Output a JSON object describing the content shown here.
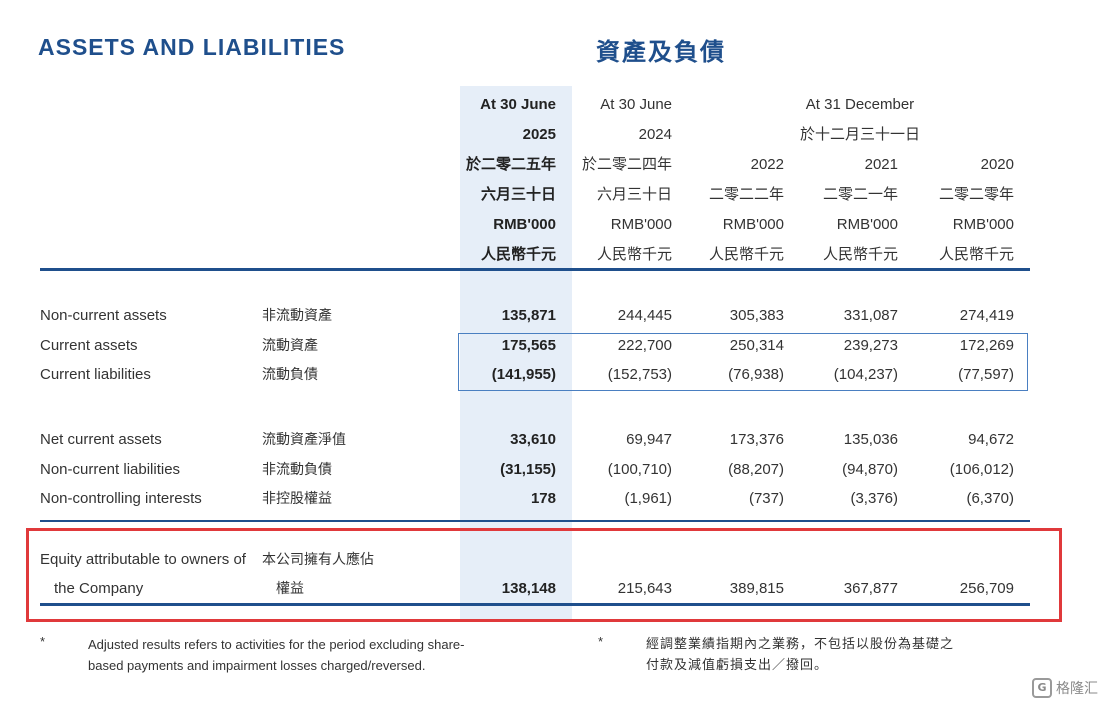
{
  "title": {
    "en": "ASSETS AND LIABILITIES",
    "zh": "資產及負債"
  },
  "header": {
    "col2025": [
      "At 30 June",
      "2025",
      "於二零二五年",
      "六月三十日",
      "RMB'000",
      "人民幣千元"
    ],
    "col2024": [
      "At 30 June",
      "2024",
      "於二零二四年",
      "六月三十日",
      "RMB'000",
      "人民幣千元"
    ],
    "dec_group": [
      "At 31 December",
      "於十二月三十一日"
    ],
    "col2022": [
      "2022",
      "二零二二年",
      "RMB'000",
      "人民幣千元"
    ],
    "col2021": [
      "2021",
      "二零二一年",
      "RMB'000",
      "人民幣千元"
    ],
    "col2020": [
      "2020",
      "二零二零年",
      "RMB'000",
      "人民幣千元"
    ]
  },
  "rows": [
    {
      "en": "Non-current assets",
      "zh": "非流動資產",
      "values": [
        "135,871",
        "244,445",
        "305,383",
        "331,087",
        "274,419"
      ]
    },
    {
      "en": "Current assets",
      "zh": "流動資產",
      "values": [
        "175,565",
        "222,700",
        "250,314",
        "239,273",
        "172,269"
      ]
    },
    {
      "en": "Current liabilities",
      "zh": "流動負債",
      "values": [
        "(141,955)",
        "(152,753)",
        "(76,938)",
        "(104,237)",
        "(77,597)"
      ]
    },
    {
      "en": "Net current assets",
      "zh": "流動資產淨值",
      "values": [
        "33,610",
        "69,947",
        "173,376",
        "135,036",
        "94,672"
      ]
    },
    {
      "en": "Non-current liabilities",
      "zh": "非流動負債",
      "values": [
        "(31,155)",
        "(100,710)",
        "(88,207)",
        "(94,870)",
        "(106,012)"
      ]
    },
    {
      "en": "Non-controlling interests",
      "zh": "非控股權益",
      "values": [
        "178",
        "(1,961)",
        "(737)",
        "(3,376)",
        "(6,370)"
      ]
    }
  ],
  "equity": {
    "en_line1": "Equity attributable to owners of",
    "en_line2": "the Company",
    "zh_line1": "本公司擁有人應佔",
    "zh_line2": "權益",
    "values": [
      "138,148",
      "215,643",
      "389,815",
      "367,877",
      "256,709"
    ]
  },
  "footnote": {
    "mark": "*",
    "en_line1": "Adjusted results refers to activities for the period excluding share-",
    "en_line2": "based payments and impairment losses charged/reversed.",
    "zh_line1": "經調整業績指期內之業務，不包括以股份為基礎之",
    "zh_line2": "付款及減值虧損支出／撥回。"
  },
  "watermark": {
    "icon": "G",
    "text": "格隆汇"
  }
}
